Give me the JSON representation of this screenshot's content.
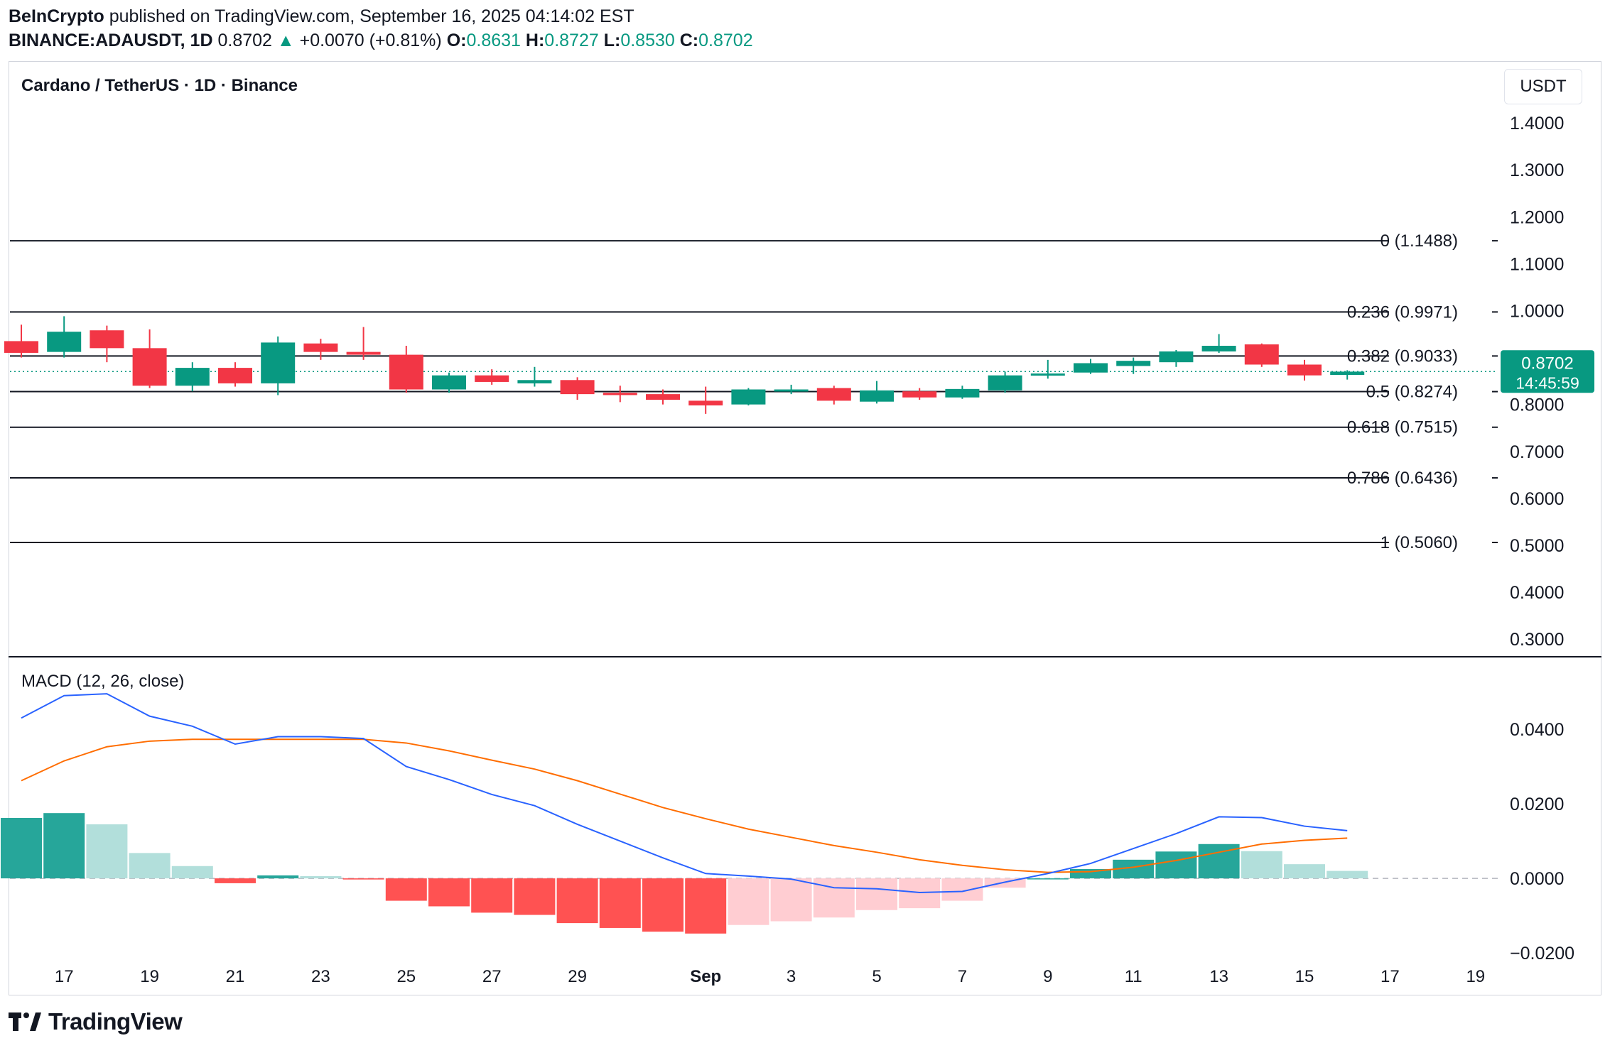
{
  "header": {
    "publisher": "BeInCrypto",
    "published_text": "published on TradingView.com, September 16, 2025 04:14:02 EST",
    "symbol": "BINANCE:ADAUSDT, 1D",
    "last": "0.8702",
    "change": "+0.0070 (+0.81%)",
    "o_label": "O:",
    "o": "0.8631",
    "h_label": "H:",
    "h": "0.8727",
    "l_label": "L:",
    "l": "0.8530",
    "c_label": "C:",
    "c": "0.8702"
  },
  "footer": {
    "brand": "TradingView",
    "logo_icon": "tradingview-logo-icon"
  },
  "colors": {
    "up": "#089981",
    "down": "#f23645",
    "macd": "#2962ff",
    "signal": "#ff6d00",
    "hist_up_strong": "#26a69a",
    "hist_up_weak": "#b2dfdb",
    "hist_down_strong": "#ff5252",
    "hist_down_weak": "#ffcdd2"
  },
  "chart_data": [
    {
      "type": "candlestick",
      "title": "Cardano / TetherUS · 1D · Binance",
      "unit": "USDT",
      "price_tag": {
        "value": "0.8702",
        "countdown": "14:45:59"
      },
      "ylim": [
        0.27,
        1.45
      ],
      "y_ticks": [
        "0.3000",
        "0.4000",
        "0.5000",
        "0.6000",
        "0.7000",
        "0.8000",
        "0.9000",
        "1.0000",
        "1.1000",
        "1.2000",
        "1.3000",
        "1.4000"
      ],
      "x_ticks": [
        {
          "label": "17",
          "i": 1
        },
        {
          "label": "19",
          "i": 3
        },
        {
          "label": "21",
          "i": 5
        },
        {
          "label": "23",
          "i": 7
        },
        {
          "label": "25",
          "i": 9
        },
        {
          "label": "27",
          "i": 11
        },
        {
          "label": "29",
          "i": 13
        },
        {
          "label": "Sep",
          "i": 16,
          "bold": true
        },
        {
          "label": "3",
          "i": 18
        },
        {
          "label": "5",
          "i": 20
        },
        {
          "label": "7",
          "i": 22
        },
        {
          "label": "9",
          "i": 24
        },
        {
          "label": "11",
          "i": 26
        },
        {
          "label": "13",
          "i": 28
        },
        {
          "label": "15",
          "i": 30
        },
        {
          "label": "17",
          "i": 32
        },
        {
          "label": "19",
          "i": 34
        }
      ],
      "fib_levels": [
        {
          "label": "0 (1.1488)",
          "value": 1.1488
        },
        {
          "label": "0.236 (0.9971)",
          "value": 0.9971
        },
        {
          "label": "0.382 (0.9033)",
          "value": 0.9033
        },
        {
          "label": "0.5 (0.8274)",
          "value": 0.8274
        },
        {
          "label": "0.618 (0.7515)",
          "value": 0.7515
        },
        {
          "label": "0.786 (0.6436)",
          "value": 0.6436
        },
        {
          "label": "1 (0.5060)",
          "value": 0.506
        }
      ],
      "candles": [
        {
          "o": 0.935,
          "h": 0.97,
          "l": 0.9,
          "c": 0.91
        },
        {
          "o": 0.912,
          "h": 0.988,
          "l": 0.9,
          "c": 0.955
        },
        {
          "o": 0.958,
          "h": 0.968,
          "l": 0.89,
          "c": 0.92
        },
        {
          "o": 0.92,
          "h": 0.96,
          "l": 0.835,
          "c": 0.84
        },
        {
          "o": 0.84,
          "h": 0.89,
          "l": 0.828,
          "c": 0.878
        },
        {
          "o": 0.878,
          "h": 0.89,
          "l": 0.838,
          "c": 0.845
        },
        {
          "o": 0.845,
          "h": 0.945,
          "l": 0.82,
          "c": 0.932
        },
        {
          "o": 0.93,
          "h": 0.94,
          "l": 0.895,
          "c": 0.912
        },
        {
          "o": 0.912,
          "h": 0.965,
          "l": 0.895,
          "c": 0.906
        },
        {
          "o": 0.906,
          "h": 0.925,
          "l": 0.825,
          "c": 0.832
        },
        {
          "o": 0.832,
          "h": 0.868,
          "l": 0.825,
          "c": 0.862
        },
        {
          "o": 0.862,
          "h": 0.875,
          "l": 0.842,
          "c": 0.848
        },
        {
          "o": 0.845,
          "h": 0.88,
          "l": 0.838,
          "c": 0.852
        },
        {
          "o": 0.852,
          "h": 0.858,
          "l": 0.81,
          "c": 0.822
        },
        {
          "o": 0.825,
          "h": 0.84,
          "l": 0.805,
          "c": 0.82
        },
        {
          "o": 0.822,
          "h": 0.832,
          "l": 0.8,
          "c": 0.81
        },
        {
          "o": 0.808,
          "h": 0.838,
          "l": 0.78,
          "c": 0.798
        },
        {
          "o": 0.8,
          "h": 0.835,
          "l": 0.798,
          "c": 0.832
        },
        {
          "o": 0.83,
          "h": 0.842,
          "l": 0.822,
          "c": 0.832
        },
        {
          "o": 0.835,
          "h": 0.84,
          "l": 0.8,
          "c": 0.808
        },
        {
          "o": 0.806,
          "h": 0.85,
          "l": 0.802,
          "c": 0.83
        },
        {
          "o": 0.828,
          "h": 0.835,
          "l": 0.81,
          "c": 0.815
        },
        {
          "o": 0.815,
          "h": 0.84,
          "l": 0.812,
          "c": 0.833
        },
        {
          "o": 0.83,
          "h": 0.87,
          "l": 0.825,
          "c": 0.862
        },
        {
          "o": 0.862,
          "h": 0.895,
          "l": 0.855,
          "c": 0.866
        },
        {
          "o": 0.868,
          "h": 0.897,
          "l": 0.865,
          "c": 0.888
        },
        {
          "o": 0.882,
          "h": 0.9,
          "l": 0.865,
          "c": 0.893
        },
        {
          "o": 0.89,
          "h": 0.916,
          "l": 0.88,
          "c": 0.913
        },
        {
          "o": 0.913,
          "h": 0.95,
          "l": 0.91,
          "c": 0.925
        },
        {
          "o": 0.928,
          "h": 0.93,
          "l": 0.88,
          "c": 0.885
        },
        {
          "o": 0.885,
          "h": 0.895,
          "l": 0.851,
          "c": 0.862
        },
        {
          "o": 0.863,
          "h": 0.873,
          "l": 0.853,
          "c": 0.87
        }
      ]
    },
    {
      "type": "macd",
      "title": "MACD (12, 26, close)",
      "ylim": [
        -0.0215,
        0.048
      ],
      "y_ticks": [
        "0.0400",
        "0.0200",
        "0.0000",
        "−0.0200"
      ],
      "macd": [
        0.043,
        0.049,
        0.0495,
        0.0435,
        0.0408,
        0.036,
        0.038,
        0.038,
        0.0375,
        0.03,
        0.0265,
        0.0225,
        0.0195,
        0.0145,
        0.01,
        0.0055,
        0.0013,
        0.0006,
        -0.0002,
        -0.0025,
        -0.0028,
        -0.0038,
        -0.0035,
        -0.001,
        0.0013,
        0.004,
        0.008,
        0.012,
        0.0165,
        0.0163,
        0.014,
        0.0128
      ],
      "signal": [
        0.0262,
        0.0315,
        0.0353,
        0.0368,
        0.0373,
        0.0373,
        0.0373,
        0.0373,
        0.0373,
        0.0363,
        0.0342,
        0.0317,
        0.0293,
        0.0262,
        0.0226,
        0.019,
        0.016,
        0.0132,
        0.011,
        0.0088,
        0.007,
        0.005,
        0.0035,
        0.0023,
        0.0016,
        0.0018,
        0.003,
        0.0048,
        0.007,
        0.0092,
        0.0102,
        0.0108
      ],
      "histogram": [
        0.0162,
        0.0175,
        0.0145,
        0.0068,
        0.0033,
        -0.0013,
        0.0008,
        0.0006,
        -0.0003,
        -0.006,
        -0.0075,
        -0.0092,
        -0.0098,
        -0.012,
        -0.0133,
        -0.0143,
        -0.0148,
        -0.0125,
        -0.0115,
        -0.0105,
        -0.0085,
        -0.008,
        -0.006,
        -0.0025,
        0.0,
        0.0025,
        0.005,
        0.0072,
        0.0092,
        0.0073,
        0.0038,
        0.002
      ]
    }
  ]
}
